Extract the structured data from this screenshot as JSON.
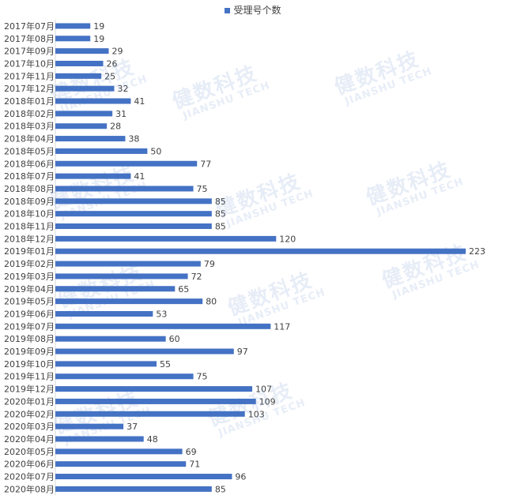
{
  "chart_data": {
    "type": "bar",
    "orientation": "horizontal",
    "title": "",
    "xlabel": "",
    "ylabel": "",
    "xlim": [
      0,
      223
    ],
    "grid": false,
    "legend_position": "top-center",
    "color": "#4472C4",
    "categories": [
      "2017年07月",
      "2017年08月",
      "2017年09月",
      "2017年10月",
      "2017年11月",
      "2017年12月",
      "2018年01月",
      "2018年02月",
      "2018年03月",
      "2018年04月",
      "2018年05月",
      "2018年06月",
      "2018年07月",
      "2018年08月",
      "2018年09月",
      "2018年10月",
      "2018年11月",
      "2018年12月",
      "2019年01月",
      "2019年02月",
      "2019年03月",
      "2019年04月",
      "2019年05月",
      "2019年06月",
      "2019年07月",
      "2019年08月",
      "2019年09月",
      "2019年10月",
      "2019年11月",
      "2019年12月",
      "2020年01月",
      "2020年02月",
      "2020年03月",
      "2020年04月",
      "2020年05月",
      "2020年06月",
      "2020年07月",
      "2020年08月"
    ],
    "series": [
      {
        "name": "受理号个数",
        "values": [
          19,
          19,
          29,
          26,
          25,
          32,
          41,
          31,
          28,
          38,
          50,
          77,
          41,
          75,
          85,
          85,
          85,
          120,
          223,
          79,
          72,
          65,
          80,
          53,
          117,
          60,
          97,
          55,
          75,
          107,
          109,
          103,
          37,
          48,
          69,
          71,
          96,
          85
        ]
      }
    ]
  },
  "watermark": {
    "cn": "健数科技",
    "en": "JIANSHU TECH"
  }
}
